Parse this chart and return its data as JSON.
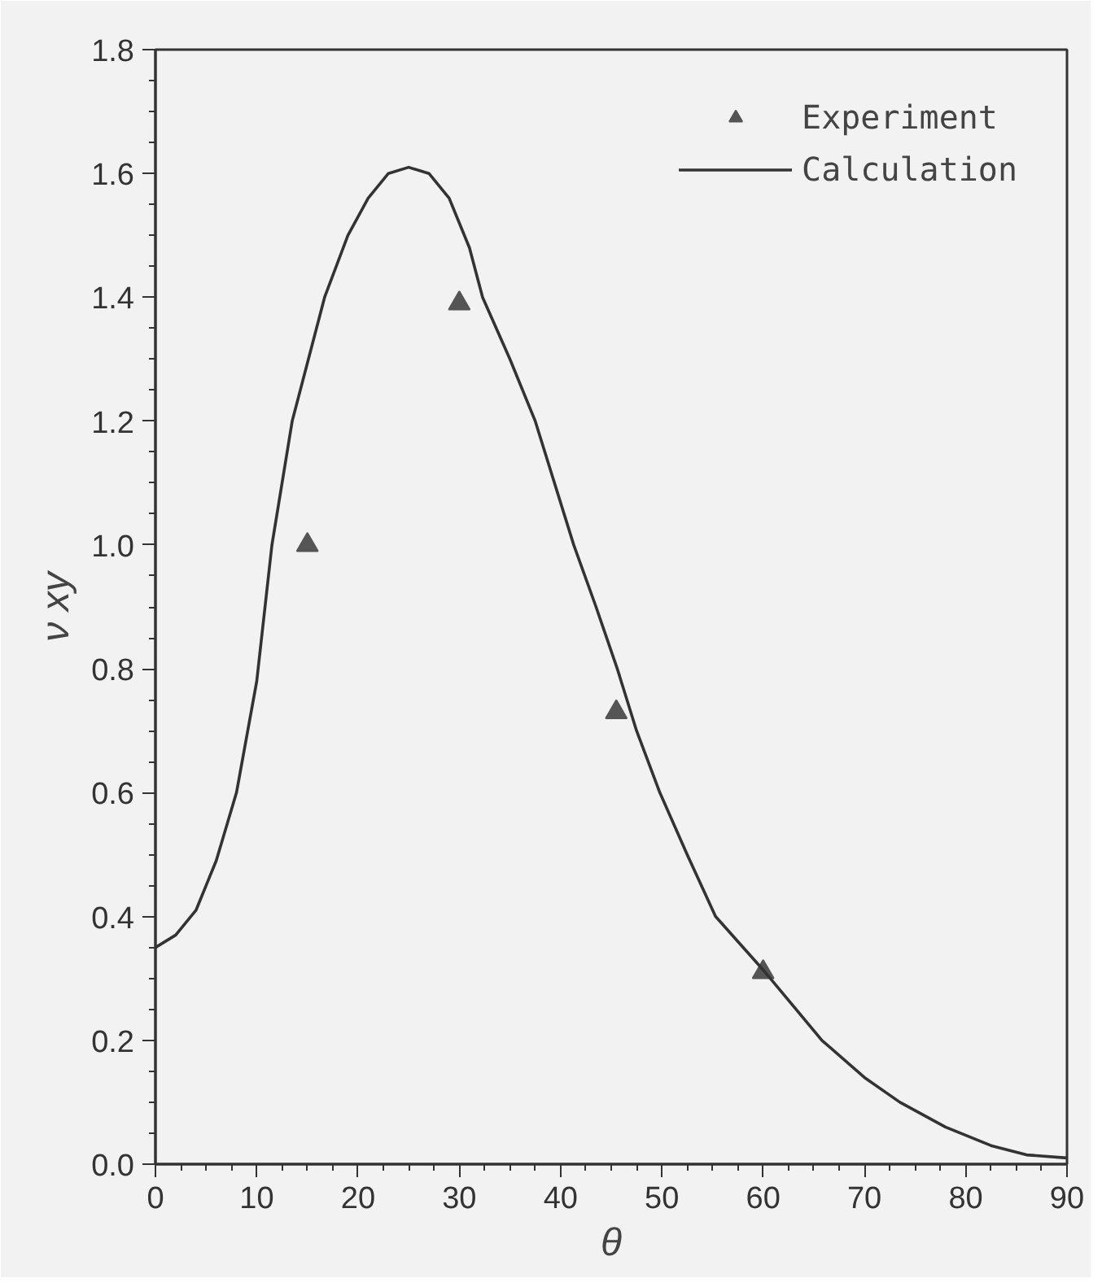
{
  "chart_data": {
    "type": "line",
    "xlabel": "θ",
    "ylabel": "ν xy",
    "xlim": [
      0,
      90
    ],
    "ylim": [
      0,
      1.8
    ],
    "xticks": [
      0,
      10,
      20,
      30,
      40,
      50,
      60,
      70,
      80,
      90
    ],
    "yticks": [
      {
        "value": 0,
        "label": "0.0"
      },
      0.2,
      0.4,
      0.6,
      0.8,
      {
        "value": 1,
        "label": "1.0"
      },
      1.2,
      1.4,
      1.6,
      1.8
    ],
    "grid": false,
    "legend": "top right",
    "series": [
      {
        "name": "Experiment",
        "type": "scatter",
        "marker": "triangle",
        "color": "#555555",
        "x": [
          15,
          30,
          45.5,
          60
        ],
        "values": [
          1.0,
          1.39,
          0.73,
          0.31
        ]
      },
      {
        "name": "Calculation",
        "line_style": "solid",
        "color": "#333333",
        "x": [
          0,
          2,
          4,
          6,
          8,
          10,
          11.5,
          13.5,
          16.7,
          19,
          21,
          23,
          25,
          27,
          29,
          31,
          32.3,
          35,
          37.5,
          41.3,
          43.5,
          45.6,
          47.5,
          49.8,
          52.5,
          55.3,
          60.2,
          65.8,
          70,
          73.5,
          78,
          82.5,
          86,
          90
        ],
        "values": [
          0.35,
          0.37,
          0.41,
          0.49,
          0.6,
          0.78,
          1.0,
          1.2,
          1.4,
          1.5,
          1.56,
          1.6,
          1.61,
          1.6,
          1.56,
          1.48,
          1.4,
          1.3,
          1.2,
          1.0,
          0.9,
          0.8,
          0.7,
          0.6,
          0.5,
          0.4,
          0.31,
          0.2,
          0.14,
          0.1,
          0.06,
          0.03,
          0.015,
          0.01
        ]
      }
    ]
  }
}
